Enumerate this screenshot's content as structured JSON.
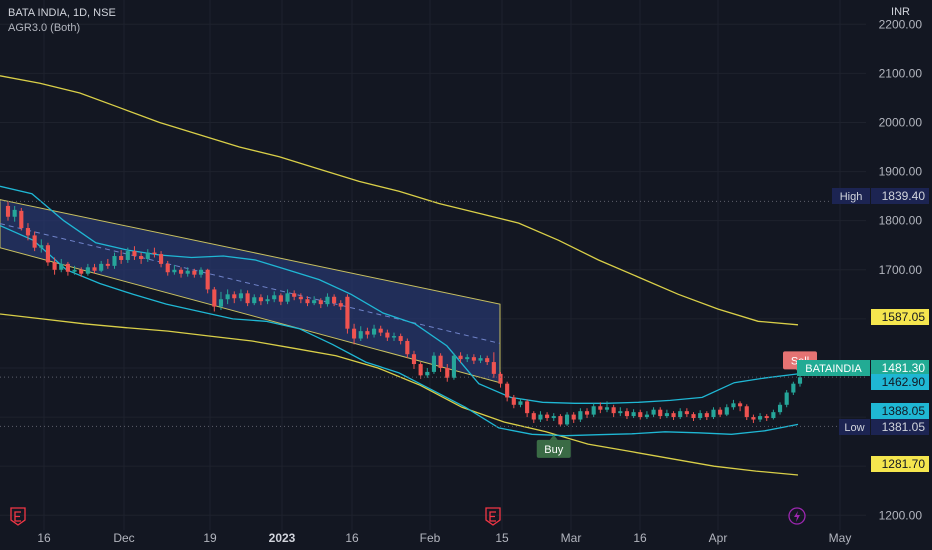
{
  "header": {
    "symbol_title": "BATA INDIA, 1D, NSE",
    "indicator_name": "AGR3.0 (Both)",
    "currency": "INR"
  },
  "colors": {
    "background": "#131722",
    "candle_up": "#26a69a",
    "candle_down": "#ef5350",
    "outer_bands": "#d9cf48",
    "inner_bands": "#1fb7d4",
    "channel_fill": "#2a3b78",
    "channel_border": "#c8c060",
    "price_label": "#22ab94",
    "buy_label": "#3a6b45",
    "sell_label": "#e57373",
    "axis_text": "#b2b5be",
    "event_icon": "#f23645",
    "bolt_icon": "#9c27b0"
  },
  "chart_data": {
    "type": "candlestick",
    "symbol": "BATAINDIA",
    "y_axis": {
      "ticks": [
        "1200.00",
        "1300.00",
        "1400.00",
        "1500.00",
        "1600.00",
        "1700.00",
        "1800.00",
        "1900.00",
        "2000.00",
        "2100.00",
        "2200.00"
      ],
      "ylim": [
        1170,
        2225
      ]
    },
    "x_axis": {
      "ticks": [
        {
          "label": "16",
          "bold": false
        },
        {
          "label": "Dec",
          "bold": false
        },
        {
          "label": "19",
          "bold": false
        },
        {
          "label": "2023",
          "bold": true
        },
        {
          "label": "16",
          "bold": false
        },
        {
          "label": "Feb",
          "bold": false
        },
        {
          "label": "15",
          "bold": false
        },
        {
          "label": "Mar",
          "bold": false
        },
        {
          "label": "16",
          "bold": false
        },
        {
          "label": "Apr",
          "bold": false
        },
        {
          "label": "May",
          "bold": false
        }
      ]
    },
    "price_labels": [
      {
        "text": "High",
        "value": "1839.40",
        "style": "dark"
      },
      {
        "text": "",
        "value": "1587.05",
        "style": "yellow"
      },
      {
        "text": "BATAINDIA",
        "value": "1481.30",
        "style": "green"
      },
      {
        "text": "",
        "value": "1462.90",
        "style": "cyan"
      },
      {
        "text": "",
        "value": "1388.05",
        "style": "cyan"
      },
      {
        "text": "Low",
        "value": "1381.05",
        "style": "dark"
      },
      {
        "text": "",
        "value": "1281.70",
        "style": "yellow"
      }
    ],
    "signals": [
      {
        "type": "buy",
        "label": "Buy",
        "price": 1378
      },
      {
        "type": "sell",
        "label": "Sell",
        "price": 1485
      }
    ],
    "candles": [
      {
        "o": 1830,
        "c": 1808,
        "h": 1839,
        "l": 1800
      },
      {
        "o": 1808,
        "c": 1822,
        "h": 1830,
        "l": 1798
      },
      {
        "o": 1820,
        "c": 1785,
        "h": 1826,
        "l": 1780
      },
      {
        "o": 1785,
        "c": 1770,
        "h": 1795,
        "l": 1760
      },
      {
        "o": 1770,
        "c": 1745,
        "h": 1778,
        "l": 1738
      },
      {
        "o": 1745,
        "c": 1750,
        "h": 1762,
        "l": 1735
      },
      {
        "o": 1750,
        "c": 1715,
        "h": 1755,
        "l": 1708
      },
      {
        "o": 1715,
        "c": 1700,
        "h": 1725,
        "l": 1690
      },
      {
        "o": 1700,
        "c": 1712,
        "h": 1722,
        "l": 1695
      },
      {
        "o": 1712,
        "c": 1696,
        "h": 1716,
        "l": 1688
      },
      {
        "o": 1696,
        "c": 1700,
        "h": 1708,
        "l": 1690
      },
      {
        "o": 1700,
        "c": 1692,
        "h": 1705,
        "l": 1686
      },
      {
        "o": 1692,
        "c": 1705,
        "h": 1712,
        "l": 1688
      },
      {
        "o": 1705,
        "c": 1698,
        "h": 1712,
        "l": 1692
      },
      {
        "o": 1698,
        "c": 1712,
        "h": 1718,
        "l": 1695
      },
      {
        "o": 1712,
        "c": 1708,
        "h": 1722,
        "l": 1702
      },
      {
        "o": 1708,
        "c": 1728,
        "h": 1735,
        "l": 1702
      },
      {
        "o": 1728,
        "c": 1720,
        "h": 1740,
        "l": 1712
      },
      {
        "o": 1720,
        "c": 1738,
        "h": 1745,
        "l": 1714
      },
      {
        "o": 1738,
        "c": 1728,
        "h": 1748,
        "l": 1720
      },
      {
        "o": 1728,
        "c": 1722,
        "h": 1735,
        "l": 1712
      },
      {
        "o": 1722,
        "c": 1735,
        "h": 1742,
        "l": 1716
      },
      {
        "o": 1735,
        "c": 1732,
        "h": 1745,
        "l": 1725
      },
      {
        "o": 1732,
        "c": 1712,
        "h": 1738,
        "l": 1705
      },
      {
        "o": 1712,
        "c": 1695,
        "h": 1718,
        "l": 1688
      },
      {
        "o": 1695,
        "c": 1700,
        "h": 1710,
        "l": 1690
      },
      {
        "o": 1700,
        "c": 1692,
        "h": 1705,
        "l": 1684
      },
      {
        "o": 1692,
        "c": 1698,
        "h": 1705,
        "l": 1686
      },
      {
        "o": 1698,
        "c": 1690,
        "h": 1702,
        "l": 1684
      },
      {
        "o": 1690,
        "c": 1700,
        "h": 1705,
        "l": 1684
      },
      {
        "o": 1700,
        "c": 1660,
        "h": 1702,
        "l": 1652
      },
      {
        "o": 1660,
        "c": 1625,
        "h": 1665,
        "l": 1615
      },
      {
        "o": 1625,
        "c": 1640,
        "h": 1655,
        "l": 1618
      },
      {
        "o": 1640,
        "c": 1650,
        "h": 1660,
        "l": 1630
      },
      {
        "o": 1650,
        "c": 1642,
        "h": 1656,
        "l": 1632
      },
      {
        "o": 1642,
        "c": 1652,
        "h": 1660,
        "l": 1636
      },
      {
        "o": 1652,
        "c": 1632,
        "h": 1658,
        "l": 1626
      },
      {
        "o": 1632,
        "c": 1644,
        "h": 1650,
        "l": 1628
      },
      {
        "o": 1644,
        "c": 1636,
        "h": 1650,
        "l": 1628
      },
      {
        "o": 1636,
        "c": 1640,
        "h": 1648,
        "l": 1630
      },
      {
        "o": 1640,
        "c": 1648,
        "h": 1656,
        "l": 1634
      },
      {
        "o": 1648,
        "c": 1635,
        "h": 1652,
        "l": 1628
      },
      {
        "o": 1635,
        "c": 1652,
        "h": 1660,
        "l": 1630
      },
      {
        "o": 1652,
        "c": 1645,
        "h": 1658,
        "l": 1638
      },
      {
        "o": 1645,
        "c": 1640,
        "h": 1652,
        "l": 1632
      },
      {
        "o": 1640,
        "c": 1632,
        "h": 1646,
        "l": 1626
      },
      {
        "o": 1632,
        "c": 1638,
        "h": 1646,
        "l": 1628
      },
      {
        "o": 1638,
        "c": 1630,
        "h": 1642,
        "l": 1622
      },
      {
        "o": 1630,
        "c": 1645,
        "h": 1652,
        "l": 1625
      },
      {
        "o": 1645,
        "c": 1632,
        "h": 1650,
        "l": 1626
      },
      {
        "o": 1632,
        "c": 1625,
        "h": 1638,
        "l": 1618
      },
      {
        "o": 1645,
        "c": 1580,
        "h": 1650,
        "l": 1570
      },
      {
        "o": 1580,
        "c": 1560,
        "h": 1590,
        "l": 1548
      },
      {
        "o": 1560,
        "c": 1575,
        "h": 1585,
        "l": 1555
      },
      {
        "o": 1575,
        "c": 1568,
        "h": 1582,
        "l": 1560
      },
      {
        "o": 1568,
        "c": 1580,
        "h": 1588,
        "l": 1562
      },
      {
        "o": 1580,
        "c": 1572,
        "h": 1586,
        "l": 1565
      },
      {
        "o": 1572,
        "c": 1562,
        "h": 1578,
        "l": 1555
      },
      {
        "o": 1562,
        "c": 1565,
        "h": 1572,
        "l": 1555
      },
      {
        "o": 1565,
        "c": 1555,
        "h": 1570,
        "l": 1548
      },
      {
        "o": 1555,
        "c": 1528,
        "h": 1560,
        "l": 1520
      },
      {
        "o": 1528,
        "c": 1508,
        "h": 1535,
        "l": 1498
      },
      {
        "o": 1508,
        "c": 1485,
        "h": 1512,
        "l": 1478
      },
      {
        "o": 1485,
        "c": 1492,
        "h": 1500,
        "l": 1480
      },
      {
        "o": 1492,
        "c": 1525,
        "h": 1532,
        "l": 1488
      },
      {
        "o": 1525,
        "c": 1500,
        "h": 1530,
        "l": 1492
      },
      {
        "o": 1500,
        "c": 1480,
        "h": 1508,
        "l": 1472
      },
      {
        "o": 1480,
        "c": 1525,
        "h": 1530,
        "l": 1476
      },
      {
        "o": 1525,
        "c": 1518,
        "h": 1532,
        "l": 1510
      },
      {
        "o": 1518,
        "c": 1522,
        "h": 1528,
        "l": 1512
      },
      {
        "o": 1522,
        "c": 1515,
        "h": 1528,
        "l": 1508
      },
      {
        "o": 1515,
        "c": 1520,
        "h": 1526,
        "l": 1510
      },
      {
        "o": 1520,
        "c": 1512,
        "h": 1525,
        "l": 1506
      },
      {
        "o": 1512,
        "c": 1488,
        "h": 1532,
        "l": 1480
      },
      {
        "o": 1488,
        "c": 1468,
        "h": 1492,
        "l": 1460
      },
      {
        "o": 1468,
        "c": 1440,
        "h": 1472,
        "l": 1432
      },
      {
        "o": 1440,
        "c": 1425,
        "h": 1445,
        "l": 1418
      },
      {
        "o": 1425,
        "c": 1432,
        "h": 1438,
        "l": 1420
      },
      {
        "o": 1432,
        "c": 1408,
        "h": 1436,
        "l": 1400
      },
      {
        "o": 1408,
        "c": 1395,
        "h": 1412,
        "l": 1388
      },
      {
        "o": 1395,
        "c": 1405,
        "h": 1412,
        "l": 1390
      },
      {
        "o": 1405,
        "c": 1398,
        "h": 1410,
        "l": 1392
      },
      {
        "o": 1398,
        "c": 1402,
        "h": 1408,
        "l": 1392
      },
      {
        "o": 1402,
        "c": 1385,
        "h": 1406,
        "l": 1381
      },
      {
        "o": 1385,
        "c": 1405,
        "h": 1410,
        "l": 1382
      },
      {
        "o": 1405,
        "c": 1395,
        "h": 1410,
        "l": 1388
      },
      {
        "o": 1395,
        "c": 1412,
        "h": 1418,
        "l": 1390
      },
      {
        "o": 1412,
        "c": 1405,
        "h": 1418,
        "l": 1398
      },
      {
        "o": 1405,
        "c": 1422,
        "h": 1428,
        "l": 1400
      },
      {
        "o": 1422,
        "c": 1415,
        "h": 1430,
        "l": 1408
      },
      {
        "o": 1415,
        "c": 1420,
        "h": 1432,
        "l": 1410
      },
      {
        "o": 1420,
        "c": 1408,
        "h": 1425,
        "l": 1400
      },
      {
        "o": 1408,
        "c": 1412,
        "h": 1420,
        "l": 1402
      },
      {
        "o": 1412,
        "c": 1402,
        "h": 1418,
        "l": 1396
      },
      {
        "o": 1402,
        "c": 1410,
        "h": 1416,
        "l": 1398
      },
      {
        "o": 1410,
        "c": 1400,
        "h": 1415,
        "l": 1395
      },
      {
        "o": 1400,
        "c": 1405,
        "h": 1412,
        "l": 1396
      },
      {
        "o": 1405,
        "c": 1415,
        "h": 1420,
        "l": 1400
      },
      {
        "o": 1415,
        "c": 1402,
        "h": 1420,
        "l": 1396
      },
      {
        "o": 1402,
        "c": 1408,
        "h": 1415,
        "l": 1398
      },
      {
        "o": 1408,
        "c": 1400,
        "h": 1412,
        "l": 1394
      },
      {
        "o": 1400,
        "c": 1412,
        "h": 1418,
        "l": 1396
      },
      {
        "o": 1412,
        "c": 1406,
        "h": 1418,
        "l": 1400
      },
      {
        "o": 1406,
        "c": 1398,
        "h": 1410,
        "l": 1392
      },
      {
        "o": 1398,
        "c": 1408,
        "h": 1414,
        "l": 1394
      },
      {
        "o": 1408,
        "c": 1400,
        "h": 1412,
        "l": 1394
      },
      {
        "o": 1400,
        "c": 1415,
        "h": 1420,
        "l": 1396
      },
      {
        "o": 1415,
        "c": 1405,
        "h": 1420,
        "l": 1400
      },
      {
        "o": 1405,
        "c": 1420,
        "h": 1426,
        "l": 1402
      },
      {
        "o": 1420,
        "c": 1428,
        "h": 1435,
        "l": 1415
      },
      {
        "o": 1428,
        "c": 1422,
        "h": 1432,
        "l": 1412
      },
      {
        "o": 1422,
        "c": 1400,
        "h": 1426,
        "l": 1394
      },
      {
        "o": 1400,
        "c": 1395,
        "h": 1405,
        "l": 1388
      },
      {
        "o": 1395,
        "c": 1402,
        "h": 1408,
        "l": 1390
      },
      {
        "o": 1402,
        "c": 1398,
        "h": 1406,
        "l": 1392
      },
      {
        "o": 1398,
        "c": 1410,
        "h": 1415,
        "l": 1395
      },
      {
        "o": 1410,
        "c": 1425,
        "h": 1430,
        "l": 1405
      },
      {
        "o": 1425,
        "c": 1450,
        "h": 1455,
        "l": 1420
      },
      {
        "o": 1450,
        "c": 1468,
        "h": 1472,
        "l": 1445
      },
      {
        "o": 1468,
        "c": 1481,
        "h": 1485,
        "l": 1462
      }
    ],
    "outer_upper_band": [
      2095,
      2080,
      2060,
      2030,
      2000,
      1975,
      1950,
      1930,
      1905,
      1880,
      1860,
      1835,
      1815,
      1795,
      1760,
      1720,
      1685,
      1650,
      1620,
      1595,
      1588
    ],
    "outer_lower_band": [
      1610,
      1600,
      1590,
      1582,
      1575,
      1565,
      1555,
      1540,
      1525,
      1500,
      1465,
      1420,
      1390,
      1370,
      1345,
      1330,
      1315,
      1300,
      1290,
      1282
    ],
    "inner_upper_band": [
      1870,
      1855,
      1800,
      1755,
      1740,
      1730,
      1725,
      1728,
      1720,
      1700,
      1680,
      1650,
      1612,
      1590,
      1545,
      1468,
      1440,
      1430,
      1428,
      1428,
      1430,
      1434,
      1440,
      1470,
      1480,
      1488
    ],
    "inner_lower_band": [
      1790,
      1760,
      1700,
      1672,
      1650,
      1630,
      1615,
      1600,
      1595,
      1580,
      1548,
      1512,
      1490,
      1455,
      1420,
      1378,
      1365,
      1362,
      1364,
      1366,
      1370,
      1368,
      1365,
      1372,
      1385
    ],
    "channel": {
      "upper_start": 1843,
      "upper_end": 1630,
      "lower_start": 1745,
      "lower_end": 1470
    }
  }
}
